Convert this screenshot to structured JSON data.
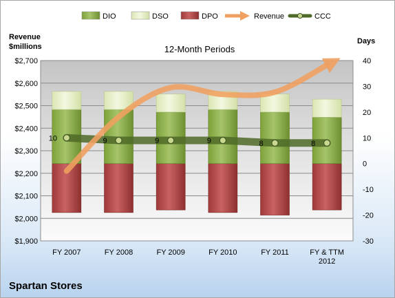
{
  "chart_data": {
    "type": "bar",
    "title": "12-Month Periods",
    "company": "Spartan Stores",
    "categories": [
      "FY 2007",
      "FY 2008",
      "FY 2009",
      "FY 2010",
      "FY 2011",
      "FY & TTM 2012"
    ],
    "left_axis": {
      "label_line1": "Revenue",
      "label_line2": "$millions",
      "ylim": [
        1900,
        2700
      ],
      "ticks": [
        "$1,900",
        "$2,000",
        "$2,100",
        "$2,200",
        "$2,300",
        "$2,400",
        "$2,500",
        "$2,600",
        "$2,700"
      ]
    },
    "right_axis": {
      "label": "Days",
      "ylim": [
        -30,
        40
      ],
      "ticks": [
        "-30",
        "-20",
        "-10",
        "0",
        "10",
        "20",
        "30",
        "40"
      ]
    },
    "legend_placement": "top",
    "grid": true,
    "series": [
      {
        "name": "DIO",
        "type": "stacked-bar",
        "axis": "right",
        "color": "#8fb04a",
        "values": [
          21,
          21,
          20,
          21,
          20,
          18
        ]
      },
      {
        "name": "DSO",
        "type": "stacked-bar",
        "axis": "right",
        "color": "#e4eec6",
        "values": [
          7,
          7,
          7,
          7,
          7,
          7
        ]
      },
      {
        "name": "DPO",
        "type": "negative-bar",
        "axis": "right",
        "color": "#b84a4a",
        "values": [
          -19,
          -19,
          -18,
          -19,
          -20,
          -18
        ]
      },
      {
        "name": "Revenue",
        "type": "arrow",
        "axis": "left",
        "color": "#f0a060",
        "values": [
          2210,
          2450,
          2580,
          2550,
          2560,
          2680
        ]
      },
      {
        "name": "CCC",
        "type": "line",
        "axis": "right",
        "color": "#4f6a28",
        "values": [
          10,
          9,
          9,
          9,
          8,
          8
        ],
        "labels": [
          "10",
          "9",
          "9",
          "9",
          "8",
          "8"
        ]
      }
    ]
  }
}
